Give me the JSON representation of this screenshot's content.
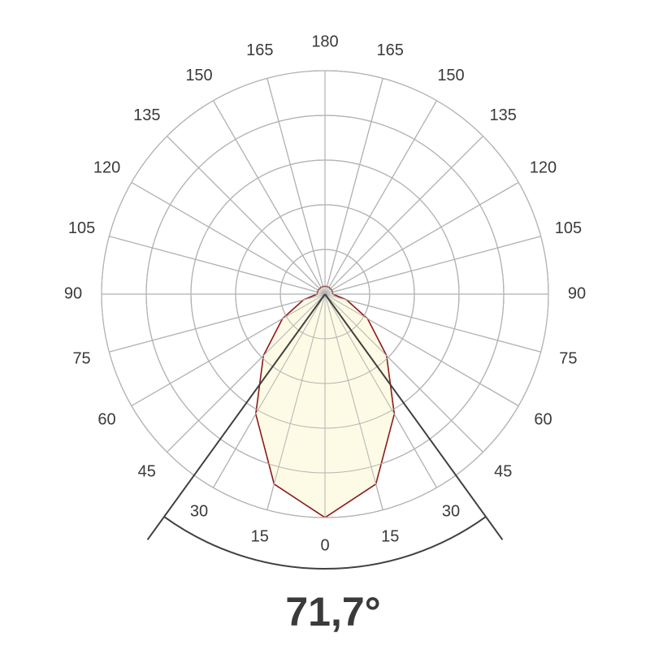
{
  "chart_data": {
    "type": "polar",
    "angles": [
      0,
      15,
      30,
      45,
      60,
      75,
      90,
      105,
      120,
      135,
      150,
      165,
      180
    ],
    "values": [
      100,
      88,
      62,
      39,
      22,
      10,
      3.5,
      3.5,
      3.5,
      3.5,
      3.5,
      3.5,
      3.5
    ],
    "rlim": [
      0,
      100
    ],
    "rticks": [
      20,
      40,
      60,
      80,
      100
    ],
    "angle_ticks": [
      0,
      15,
      30,
      45,
      60,
      75,
      90,
      105,
      120,
      135,
      150,
      165,
      180
    ],
    "beam_angle": {
      "value": 71.7,
      "label": "71,7°"
    },
    "line_color": "#8b1a1a",
    "fill_color": "#fdfbe2",
    "beam_color": "#404040"
  }
}
